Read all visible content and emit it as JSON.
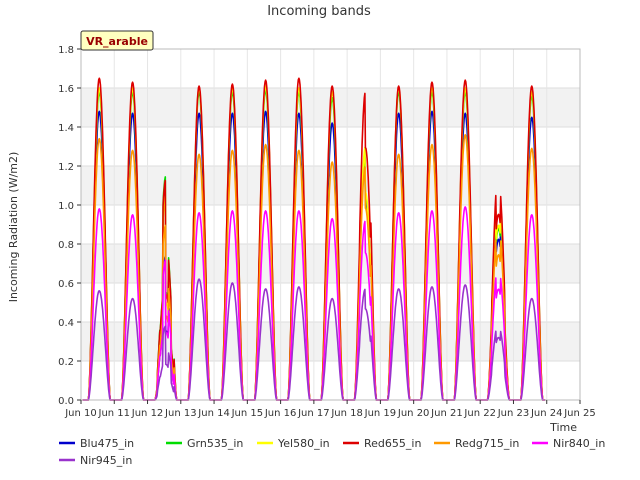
{
  "chart_data": {
    "type": "line",
    "title": "Incoming bands",
    "ylabel": "Incoming Radiation (W/m2)",
    "xlabel": "Time",
    "site_label": "VR_arable",
    "ylim": [
      0.0,
      1.8
    ],
    "xlim": [
      "2024-06-10",
      "2024-06-25"
    ],
    "y_ticks": [
      "0.0",
      "0.2",
      "0.4",
      "0.6",
      "0.8",
      "1.0",
      "1.2",
      "1.4",
      "1.6",
      "1.8"
    ],
    "x_ticks": [
      "Jun 10",
      "Jun 11",
      "Jun 12",
      "Jun 13",
      "Jun 14",
      "Jun 15",
      "Jun 16",
      "Jun 17",
      "Jun 18",
      "Jun 19",
      "Jun 20",
      "Jun 21",
      "Jun 22",
      "Jun 23",
      "Jun 24",
      "Jun 25"
    ],
    "grid": true,
    "legend_position": "bottom",
    "series": [
      {
        "name": "Blu475_in",
        "color": "#0000cc",
        "daily_peaks": [
          1.48,
          1.47,
          0.74,
          1.47,
          1.47,
          1.48,
          1.47,
          1.42,
          1.25,
          1.47,
          1.48,
          1.47,
          1.03,
          1.45
        ]
      },
      {
        "name": "Grn535_in",
        "color": "#00dd00",
        "daily_peaks": [
          1.58,
          1.58,
          1.15,
          1.58,
          1.58,
          1.59,
          1.58,
          1.55,
          1.28,
          1.58,
          1.58,
          1.58,
          1.1,
          1.56
        ]
      },
      {
        "name": "Yel580_in",
        "color": "#ffff00",
        "daily_peaks": [
          1.6,
          1.6,
          1.05,
          1.6,
          1.6,
          1.61,
          1.6,
          1.58,
          1.3,
          1.6,
          1.6,
          1.6,
          1.12,
          1.58
        ]
      },
      {
        "name": "Red655_in",
        "color": "#dd0000",
        "daily_peaks": [
          1.65,
          1.63,
          1.13,
          1.61,
          1.62,
          1.64,
          1.65,
          1.61,
          1.58,
          1.61,
          1.63,
          1.64,
          1.19,
          1.61
        ]
      },
      {
        "name": "Redg715_in",
        "color": "#ff9900",
        "daily_peaks": [
          1.34,
          1.28,
          0.9,
          1.26,
          1.28,
          1.31,
          1.28,
          1.22,
          1.2,
          1.26,
          1.31,
          1.36,
          0.93,
          1.29
        ]
      },
      {
        "name": "Nir840_in",
        "color": "#ff00ff",
        "daily_peaks": [
          0.98,
          0.95,
          0.72,
          0.96,
          0.97,
          0.97,
          0.97,
          0.93,
          0.92,
          0.96,
          0.97,
          0.99,
          0.71,
          0.95
        ]
      },
      {
        "name": "Nir945_in",
        "color": "#9933cc",
        "daily_peaks": [
          0.56,
          0.52,
          0.38,
          0.62,
          0.6,
          0.57,
          0.58,
          0.52,
          0.57,
          0.57,
          0.58,
          0.59,
          0.4,
          0.52
        ]
      }
    ]
  }
}
